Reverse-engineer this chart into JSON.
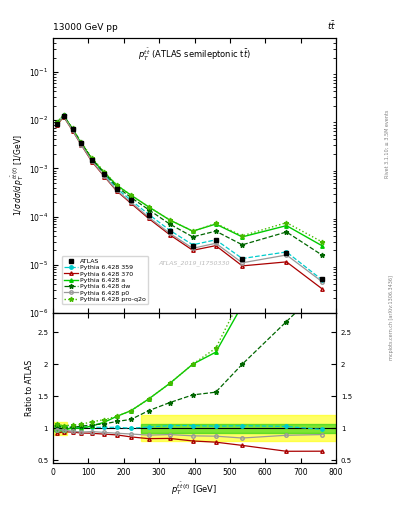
{
  "title_top": "13000 GeV pp",
  "title_top_right": "tt",
  "plot_title": "$p_T^{t\\bar{t}}$ (ATLAS semileptonic t$\\bar{t}$)",
  "xlabel": "$p_T^{t\\bar{t}\\,(t)}$ [GeV]",
  "ylabel_main": "$1 / \\sigma\\, d\\sigma / d\\, p_T^{t\\bar{t}\\,(t)}$ [1/GeV]",
  "ylabel_ratio": "Ratio to ATLAS",
  "watermark": "ATLAS_2019_I1750330",
  "right_label": "mcplots.cern.ch [arXiv:1306.3436]",
  "right_label2": "Rivet 3.1.10; ≥ 3.5M events",
  "x_points": [
    10,
    30,
    55,
    80,
    110,
    145,
    180,
    220,
    270,
    330,
    395,
    460,
    535,
    660,
    760
  ],
  "atlas_y": [
    0.0085,
    0.0125,
    0.0065,
    0.0033,
    0.0015,
    0.00075,
    0.00038,
    0.00022,
    0.00011,
    5e-05,
    2.5e-05,
    3.2e-05,
    1.3e-05,
    1.8e-05,
    5e-06
  ],
  "py359_y": [
    0.0088,
    0.0128,
    0.0066,
    0.00335,
    0.00152,
    0.00076,
    0.000385,
    0.00022,
    0.000112,
    5.2e-05,
    2.6e-05,
    3.3e-05,
    1.35e-05,
    1.85e-05,
    4.9e-06
  ],
  "py370_y": [
    0.0078,
    0.0118,
    0.0061,
    0.00305,
    0.00138,
    0.00068,
    0.00034,
    0.00019,
    9.2e-05,
    4.2e-05,
    2e-05,
    2.5e-05,
    9.5e-06,
    1.15e-05,
    3.2e-06
  ],
  "pya_y": [
    0.0082,
    0.0122,
    0.0065,
    0.0033,
    0.00155,
    0.00082,
    0.00045,
    0.00028,
    0.00016,
    8.5e-05,
    5e-05,
    7e-05,
    3.8e-05,
    6.5e-05,
    2.5e-05
  ],
  "pydw_y": [
    0.0088,
    0.0126,
    0.0066,
    0.0034,
    0.00158,
    0.0008,
    0.00042,
    0.00025,
    0.00014,
    7e-05,
    3.8e-05,
    5e-05,
    2.6e-05,
    4.8e-05,
    1.6e-05
  ],
  "pyp0_y": [
    0.0083,
    0.0121,
    0.0062,
    0.0031,
    0.00142,
    0.0007,
    0.00035,
    0.0002,
    9.8e-05,
    4.5e-05,
    2.2e-05,
    2.8e-05,
    1.1e-05,
    1.6e-05,
    4.5e-06
  ],
  "pyproq2o_y": [
    0.009,
    0.013,
    0.0068,
    0.0035,
    0.00165,
    0.00085,
    0.00045,
    0.00028,
    0.00016,
    8.5e-05,
    5e-05,
    7.2e-05,
    4e-05,
    7.5e-05,
    3e-05
  ],
  "color_atlas": "#000000",
  "color_359": "#00CCCC",
  "color_370": "#AA0000",
  "color_a": "#00CC00",
  "color_dw": "#006600",
  "color_p0": "#999999",
  "color_proq2o": "#44BB00",
  "band_yellow": "#FFFF00",
  "band_green": "#00CC00",
  "band_xmin": 250,
  "ylim_main": [
    1e-06,
    0.5
  ],
  "ylim_ratio": [
    0.45,
    2.8
  ],
  "xlim": [
    0,
    800
  ]
}
